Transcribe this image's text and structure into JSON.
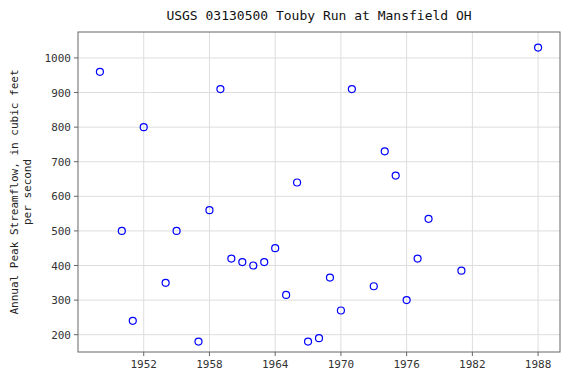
{
  "chart_data": {
    "type": "scatter",
    "title": "USGS 03130500 Touby Run at Mansfield OH",
    "ylabel": "Annual Peak Streamflow, in cubic feet\nper second",
    "x": [
      1948,
      1950,
      1951,
      1952,
      1954,
      1955,
      1957,
      1958,
      1959,
      1960,
      1961,
      1962,
      1963,
      1964,
      1965,
      1966,
      1967,
      1968,
      1969,
      1970,
      1971,
      1973,
      1974,
      1975,
      1976,
      1977,
      1978,
      1981,
      1988
    ],
    "values": [
      960,
      500,
      240,
      800,
      350,
      500,
      180,
      560,
      910,
      420,
      410,
      400,
      410,
      450,
      315,
      640,
      180,
      190,
      365,
      270,
      910,
      340,
      730,
      660,
      300,
      420,
      535,
      385,
      1030
    ],
    "xlim": [
      1946,
      1990
    ],
    "ylim": [
      150,
      1075
    ],
    "xticks": [
      1952,
      1958,
      1964,
      1970,
      1976,
      1982,
      1988
    ],
    "yticks": [
      200,
      300,
      400,
      500,
      600,
      700,
      800,
      900,
      1000
    ],
    "color": "blue",
    "marker": "open-circle",
    "grid": true
  }
}
